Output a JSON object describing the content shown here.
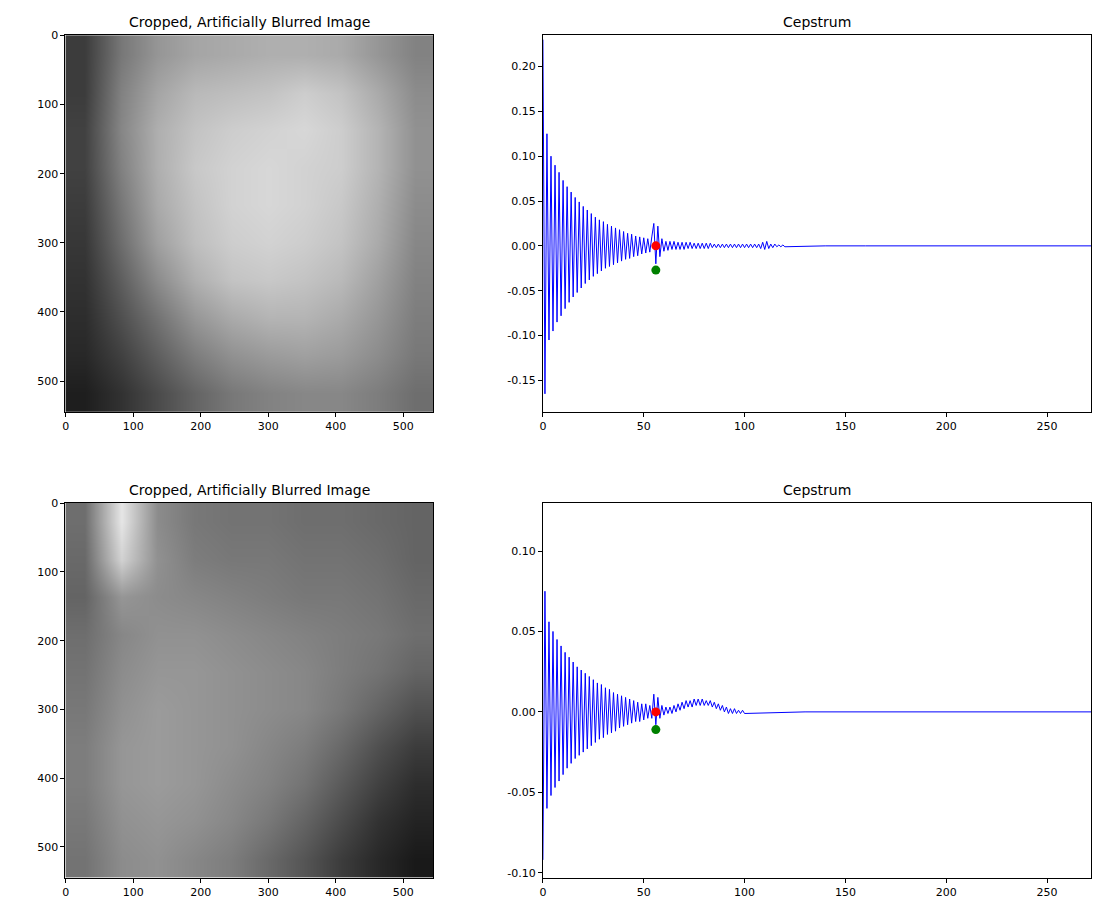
{
  "chart_data": [
    {
      "type": "heatmap",
      "title": "Cropped, Artificially Blurred Image",
      "color": "gray",
      "zlim": [
        0,
        255
      ],
      "x": [
        27,
        82,
        136,
        191,
        245,
        300,
        354,
        409,
        463,
        518
      ],
      "y": [
        27,
        82,
        136,
        191,
        245,
        300,
        354,
        409,
        463,
        518
      ],
      "cells": [
        [
          60,
          120,
          150,
          165,
          170,
          175,
          175,
          170,
          150,
          130
        ],
        [
          60,
          130,
          165,
          185,
          190,
          195,
          205,
          195,
          170,
          140
        ],
        [
          65,
          135,
          175,
          195,
          205,
          210,
          215,
          205,
          180,
          145
        ],
        [
          65,
          130,
          175,
          200,
          210,
          215,
          210,
          205,
          180,
          145
        ],
        [
          60,
          120,
          170,
          195,
          210,
          215,
          210,
          200,
          175,
          140
        ],
        [
          55,
          110,
          160,
          190,
          205,
          210,
          205,
          195,
          170,
          135
        ],
        [
          50,
          95,
          140,
          175,
          195,
          200,
          195,
          185,
          160,
          130
        ],
        [
          45,
          80,
          115,
          150,
          170,
          180,
          180,
          170,
          150,
          125
        ],
        [
          40,
          65,
          95,
          125,
          145,
          155,
          160,
          155,
          140,
          120
        ],
        [
          30,
          50,
          75,
          100,
          120,
          130,
          135,
          135,
          125,
          110
        ]
      ],
      "xlim": [
        -0.5,
        544.5
      ],
      "ylim": [
        544.5,
        -0.5
      ],
      "xticks": [
        0,
        100,
        200,
        300,
        400,
        500
      ],
      "yticks": [
        0,
        100,
        200,
        300,
        400,
        500
      ]
    },
    {
      "type": "line",
      "title": "Cepstrum",
      "xlim": [
        0,
        272
      ],
      "ylim": [
        -0.185,
        0.235
      ],
      "xticks": [
        0,
        50,
        100,
        150,
        200,
        250
      ],
      "yticks": [
        -0.15,
        {
          "value": -0.1,
          "label": "-0.10"
        },
        -0.05,
        {
          "value": 0,
          "label": "0.00"
        },
        0.05,
        {
          "value": 0.1,
          "label": "0.10"
        },
        0.15,
        {
          "value": 0.2,
          "label": "0.20"
        }
      ],
      "series": [
        {
          "type": "line",
          "color": "#0000ff",
          "x": [
            0,
            1,
            2,
            3,
            4,
            5,
            6,
            7,
            8,
            9,
            10,
            11,
            12,
            13,
            14,
            15,
            16,
            17,
            18,
            19,
            20,
            21,
            22,
            23,
            24,
            25,
            26,
            27,
            28,
            29,
            30,
            31,
            32,
            33,
            34,
            35,
            36,
            37,
            38,
            39,
            40,
            41,
            42,
            43,
            44,
            45,
            46,
            47,
            48,
            49,
            50,
            51,
            52,
            53,
            54,
            55,
            56,
            57,
            58,
            59,
            60,
            61,
            62,
            63,
            64,
            65,
            66,
            67,
            68,
            69,
            70,
            71,
            72,
            73,
            74,
            75,
            76,
            77,
            78,
            79,
            80,
            81,
            82,
            83,
            84,
            85,
            86,
            87,
            88,
            89,
            90,
            91,
            92,
            93,
            94,
            95,
            96,
            97,
            98,
            99,
            100,
            101,
            102,
            103,
            104,
            105,
            106,
            107,
            108,
            109,
            110,
            111,
            112,
            113,
            114,
            115,
            116,
            117,
            118,
            119,
            120,
            140,
            160,
            272
          ],
          "values": [
            0.23,
            -0.165,
            0.125,
            -0.105,
            0.1,
            -0.095,
            0.09,
            -0.085,
            0.082,
            -0.078,
            0.073,
            -0.07,
            0.066,
            -0.063,
            0.06,
            -0.057,
            0.054,
            -0.052,
            0.049,
            -0.047,
            0.044,
            -0.042,
            0.04,
            -0.038,
            0.036,
            -0.034,
            0.032,
            -0.031,
            0.029,
            -0.028,
            0.027,
            -0.025,
            0.024,
            -0.023,
            0.022,
            -0.021,
            0.02,
            -0.019,
            0.018,
            -0.017,
            0.016,
            -0.015,
            0.014,
            -0.014,
            0.013,
            -0.012,
            0.011,
            -0.011,
            0.01,
            -0.009,
            0.009,
            -0.008,
            0.008,
            -0.007,
            0.01,
            0.025,
            -0.02,
            0.022,
            -0.012,
            0.008,
            -0.006,
            0.005,
            -0.005,
            0.005,
            -0.004,
            0.005,
            -0.004,
            0.004,
            -0.004,
            0.004,
            -0.004,
            0.004,
            -0.003,
            0.004,
            -0.003,
            0.003,
            -0.003,
            0.003,
            -0.003,
            0.003,
            -0.003,
            0.003,
            -0.003,
            0.003,
            -0.002,
            0.002,
            -0.002,
            0.002,
            -0.002,
            0.002,
            -0.002,
            0.002,
            -0.002,
            0.002,
            -0.002,
            0.002,
            -0.002,
            0.002,
            -0.002,
            0.002,
            -0.002,
            0.002,
            -0.002,
            0.002,
            -0.002,
            0.002,
            -0.002,
            0.002,
            -0.003,
            0.004,
            -0.004,
            0.005,
            -0.003,
            0.002,
            -0.002,
            0.002,
            -0.001,
            0.001,
            -0.001,
            0.001,
            -0.001,
            0,
            0,
            0
          ]
        },
        {
          "type": "scatter",
          "color": "#ff0000",
          "x": [
            56
          ],
          "values": [
            0
          ]
        },
        {
          "type": "scatter",
          "color": "#008000",
          "x": [
            56
          ],
          "values": [
            -0.027
          ]
        }
      ]
    },
    {
      "type": "heatmap",
      "title": "Cropped, Artificially Blurred Image",
      "color": "gray",
      "zlim": [
        0,
        255
      ],
      "x": [
        27,
        82,
        136,
        191,
        245,
        300,
        354,
        409,
        463,
        518
      ],
      "y": [
        27,
        82,
        136,
        191,
        245,
        300,
        354,
        409,
        463,
        518
      ],
      "cells": [
        [
          110,
          230,
          140,
          120,
          115,
          115,
          110,
          110,
          105,
          100
        ],
        [
          105,
          210,
          145,
          125,
          120,
          120,
          115,
          115,
          110,
          100
        ],
        [
          100,
          150,
          140,
          135,
          130,
          125,
          120,
          120,
          115,
          105
        ],
        [
          110,
          135,
          145,
          145,
          140,
          135,
          130,
          125,
          120,
          110
        ],
        [
          115,
          140,
          150,
          150,
          145,
          140,
          135,
          125,
          115,
          100
        ],
        [
          120,
          145,
          155,
          150,
          145,
          140,
          135,
          120,
          100,
          80
        ],
        [
          125,
          150,
          155,
          150,
          145,
          135,
          125,
          105,
          80,
          60
        ],
        [
          125,
          150,
          155,
          150,
          140,
          130,
          115,
          90,
          65,
          45
        ],
        [
          120,
          145,
          150,
          145,
          135,
          120,
          100,
          75,
          50,
          35
        ],
        [
          115,
          140,
          145,
          135,
          125,
          105,
          85,
          60,
          40,
          25
        ]
      ],
      "xlim": [
        -0.5,
        544.5
      ],
      "ylim": [
        544.5,
        -0.5
      ],
      "xticks": [
        0,
        100,
        200,
        300,
        400,
        500
      ],
      "yticks": [
        0,
        100,
        200,
        300,
        400,
        500
      ]
    },
    {
      "type": "line",
      "title": "Cepstrum",
      "xlim": [
        0,
        272
      ],
      "ylim": [
        -0.103,
        0.13
      ],
      "xticks": [
        0,
        50,
        100,
        150,
        200,
        250
      ],
      "yticks": [
        {
          "value": -0.1,
          "label": "-0.10"
        },
        -0.05,
        {
          "value": 0,
          "label": "0.00"
        },
        0.05,
        {
          "value": 0.1,
          "label": "0.10"
        }
      ],
      "series": [
        {
          "type": "line",
          "color": "#0000ff",
          "x": [
            0,
            1,
            2,
            3,
            4,
            5,
            6,
            7,
            8,
            9,
            10,
            11,
            12,
            13,
            14,
            15,
            16,
            17,
            18,
            19,
            20,
            21,
            22,
            23,
            24,
            25,
            26,
            27,
            28,
            29,
            30,
            31,
            32,
            33,
            34,
            35,
            36,
            37,
            38,
            39,
            40,
            41,
            42,
            43,
            44,
            45,
            46,
            47,
            48,
            49,
            50,
            51,
            52,
            53,
            54,
            55,
            56,
            57,
            58,
            59,
            60,
            61,
            62,
            63,
            64,
            65,
            66,
            67,
            68,
            69,
            70,
            71,
            72,
            73,
            74,
            75,
            76,
            77,
            78,
            79,
            80,
            81,
            82,
            83,
            84,
            85,
            86,
            87,
            88,
            89,
            90,
            91,
            92,
            93,
            94,
            95,
            96,
            97,
            98,
            99,
            100,
            130,
            272
          ],
          "values": [
            -0.092,
            0.075,
            -0.06,
            0.056,
            -0.052,
            0.05,
            -0.047,
            0.045,
            -0.043,
            0.041,
            -0.039,
            0.037,
            -0.035,
            0.034,
            -0.032,
            0.031,
            -0.029,
            0.028,
            -0.027,
            0.026,
            -0.025,
            0.024,
            -0.023,
            0.022,
            -0.021,
            0.02,
            -0.019,
            0.018,
            -0.017,
            0.017,
            -0.016,
            0.015,
            -0.014,
            0.014,
            -0.013,
            0.012,
            -0.012,
            0.011,
            -0.01,
            0.01,
            -0.009,
            0.009,
            -0.008,
            0.008,
            -0.007,
            0.007,
            -0.006,
            0.006,
            -0.006,
            0.005,
            -0.005,
            0.005,
            -0.004,
            0.004,
            -0.004,
            0.011,
            -0.008,
            0.009,
            -0.004,
            0.004,
            -0.002,
            0.003,
            -0.001,
            0.003,
            -0.001,
            0.004,
            0,
            0.005,
            0.001,
            0.006,
            0.002,
            0.007,
            0.003,
            0.007,
            0.003,
            0.008,
            0.004,
            0.008,
            0.004,
            0.008,
            0.004,
            0.007,
            0.004,
            0.007,
            0.003,
            0.006,
            0.002,
            0.005,
            0.001,
            0.004,
            0,
            0.003,
            -0.001,
            0.002,
            -0.001,
            0.002,
            -0.001,
            0.001,
            -0.001,
            0.001,
            -0.001,
            0,
            0
          ]
        },
        {
          "type": "scatter",
          "color": "#ff0000",
          "x": [
            56
          ],
          "values": [
            0
          ]
        },
        {
          "type": "scatter",
          "color": "#008000",
          "x": [
            56
          ],
          "values": [
            -0.011
          ]
        }
      ]
    }
  ]
}
